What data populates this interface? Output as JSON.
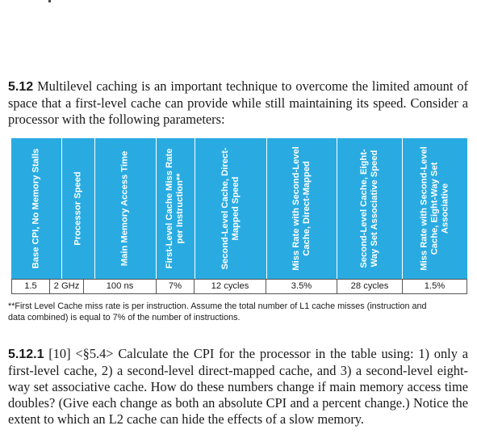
{
  "problem_5_12": {
    "number": "5.12",
    "text": "Multilevel caching is an important technique to overcome the limited amount of space that a first-level cache can provide while still maintaining its speed. Consider a processor with the following parameters:"
  },
  "table": {
    "headers": [
      "Base CPI, No Memory Stalls",
      "Processor Speed",
      "Main Memory Access Time",
      "First-Level Cache Miss Rate per Instruction**",
      "Second-Level Cache, Direct-Mapped Speed",
      "Miss Rate with Second-Level Cache, Direct-Mapped",
      "Second-Level Cache, Eight-Way Set Associative Speed",
      "Miss Rate with Second-Level Cache, Eight-Way Set Associative"
    ],
    "values": [
      "1.5",
      "2 GHz",
      "100 ns",
      "7%",
      "12 cycles",
      "3.5%",
      "28 cycles",
      "1.5%"
    ],
    "header_color": "#29abe2"
  },
  "footnote": "**First Level Cache miss rate is per instruction. Assume the total number of L1 cache misses (instruction and data combined) is equal to 7% of the number of instructions.",
  "problem_5_12_1": {
    "number": "5.12.1",
    "ref": "[10] <§5.4>",
    "text": "Calculate the CPI for the processor in the table using: 1) only a first-level cache, 2) a second-level direct-mapped cache, and 3) a second-level eight-way set associative cache. How do these numbers change if main memory access time doubles? (Give each change as both an absolute CPI and a percent change.) Notice the extent to which an L2 cache can hide the effects of a slow memory."
  }
}
